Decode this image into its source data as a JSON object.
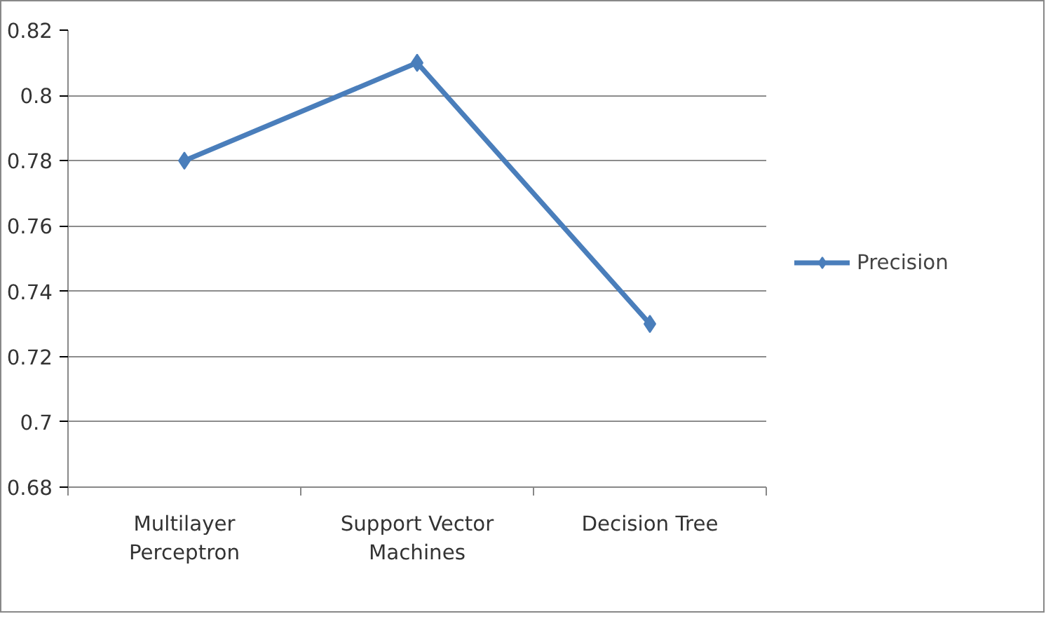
{
  "chart_data": {
    "type": "line",
    "categories": [
      "Multilayer Perceptron",
      "Support Vector Machines",
      "Decision Tree"
    ],
    "series": [
      {
        "name": "Precision",
        "color": "#4a7ebb",
        "values": [
          0.78,
          0.81,
          0.73
        ]
      }
    ],
    "ylim": [
      0.68,
      0.82
    ],
    "yticks": [
      0.68,
      0.7,
      0.72,
      0.74,
      0.76,
      0.78,
      0.8,
      0.82
    ],
    "grid": "y",
    "legend": "right",
    "marker": "diamond",
    "line_style": "solid"
  }
}
